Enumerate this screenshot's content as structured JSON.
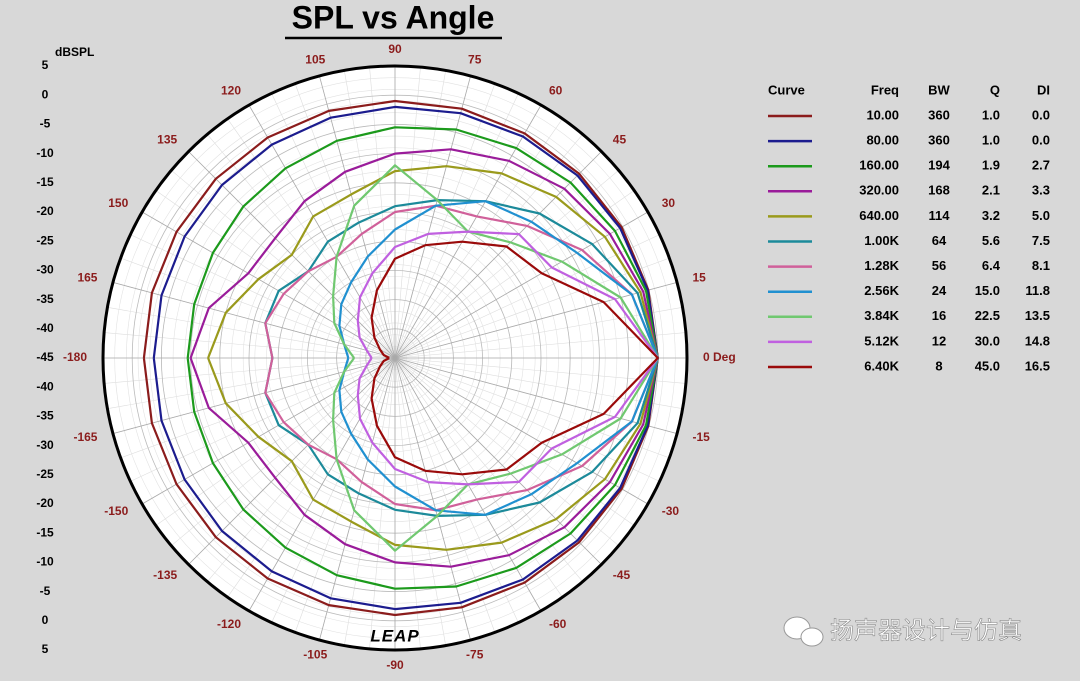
{
  "chart_data": {
    "type": "polar",
    "title": "SPL vs Angle",
    "r_label": "dBSPL",
    "rlim": [
      -45,
      5
    ],
    "rticks": [
      5,
      0,
      -5,
      -10,
      -15,
      -20,
      -25,
      -30,
      -35,
      -40,
      -45
    ],
    "thetaticks": [
      {
        "value": 0,
        "label": "0 Deg"
      },
      15,
      30,
      45,
      60,
      75,
      90,
      105,
      120,
      135,
      150,
      165,
      -180,
      -165,
      -150,
      -135,
      -120,
      -105,
      -90,
      -75,
      -60,
      -45,
      -30,
      -15
    ],
    "theta": [
      -180,
      -165,
      -150,
      -135,
      -120,
      -105,
      -90,
      -75,
      -60,
      -45,
      -30,
      -15,
      0,
      15,
      30,
      45,
      60,
      75,
      90,
      105,
      120,
      135,
      150,
      165,
      180
    ],
    "grid": true,
    "legend_columns": [
      "Curve",
      "Freq",
      "BW",
      "Q",
      "DI"
    ],
    "series": [
      {
        "name": "10.00",
        "color": "#8b1c1c",
        "bw": "360",
        "q": "1.0",
        "di": "0.0",
        "values": [
          -2,
          -1.9,
          -1.8,
          -1.6,
          -1.4,
          -1.2,
          -1,
          -0.8,
          -0.6,
          -0.4,
          -0.2,
          -0.1,
          0,
          -0.1,
          -0.2,
          -0.4,
          -0.6,
          -0.8,
          -1,
          -1.2,
          -1.4,
          -1.6,
          -1.8,
          -1.9,
          -2
        ]
      },
      {
        "name": "80.00",
        "color": "#1c1c8e",
        "bw": "360",
        "q": "1.0",
        "di": "0.0",
        "values": [
          -3.7,
          -3.6,
          -3.4,
          -3.1,
          -2.8,
          -2.4,
          -2,
          -1.6,
          -1.2,
          -0.8,
          -0.5,
          -0.2,
          0,
          -0.2,
          -0.5,
          -0.8,
          -1.2,
          -1.6,
          -2,
          -2.4,
          -2.8,
          -3.1,
          -3.4,
          -3.6,
          -3.7
        ]
      },
      {
        "name": "160.00",
        "color": "#1c9a1c",
        "bw": "194",
        "q": "1.9",
        "di": "2.7",
        "values": [
          -9.5,
          -9.4,
          -9,
          -8.3,
          -7.5,
          -6.5,
          -5.5,
          -4.5,
          -3.5,
          -2.5,
          -1.5,
          -0.5,
          0,
          -0.5,
          -1.5,
          -2.5,
          -3.5,
          -4.5,
          -5.5,
          -6.5,
          -7.5,
          -8.3,
          -9,
          -9.4,
          -9.5
        ]
      },
      {
        "name": "320.00",
        "color": "#9a1c9a",
        "bw": "168",
        "q": "2.1",
        "di": "3.3",
        "values": [
          -10,
          -12,
          -16,
          -16,
          -14,
          -12,
          -10,
          -8,
          -6,
          -4,
          -2.5,
          -1,
          0,
          -1,
          -2.5,
          -4,
          -6,
          -8,
          -10,
          -12,
          -14,
          -16,
          -16,
          -12,
          -10
        ]
      },
      {
        "name": "640.00",
        "color": "#9a9a1c",
        "bw": "114",
        "q": "3.2",
        "di": "5.0",
        "values": [
          -13,
          -15,
          -18,
          -20,
          -17,
          -16,
          -13,
          -11,
          -8.5,
          -6,
          -3.5,
          -1.5,
          0,
          -1.5,
          -3.5,
          -6,
          -8.5,
          -11,
          -13,
          -16,
          -17,
          -20,
          -18,
          -15,
          -13
        ]
      },
      {
        "name": "1.00K",
        "color": "#1c8a9a",
        "bw": "64",
        "q": "5.6",
        "di": "7.5",
        "values": [
          -24,
          -22,
          -22,
          -24,
          -22,
          -21,
          -19,
          -17,
          -14,
          -10,
          -6,
          -2,
          0,
          -2,
          -6,
          -10,
          -14,
          -17,
          -19,
          -21,
          -22,
          -24,
          -22,
          -22,
          -24
        ]
      },
      {
        "name": "1.28K",
        "color": "#d0609a",
        "bw": "56",
        "q": "6.4",
        "di": "8.1",
        "values": [
          -24,
          -22,
          -23,
          -24,
          -25,
          -23,
          -20,
          -18,
          -17,
          -13,
          -8,
          -3,
          0,
          -3,
          -8,
          -13,
          -17,
          -18,
          -20,
          -23,
          -25,
          -24,
          -23,
          -22,
          -24
        ]
      },
      {
        "name": "2.56K",
        "color": "#2090d0",
        "bw": "24",
        "q": "15.0",
        "di": "11.8",
        "values": [
          -37,
          -36,
          -34,
          -32,
          -30,
          -27,
          -23,
          -18,
          -14,
          -12,
          -9,
          -3,
          0,
          -3,
          -9,
          -12,
          -14,
          -18,
          -23,
          -27,
          -30,
          -32,
          -34,
          -36,
          -37
        ]
      },
      {
        "name": "3.84K",
        "color": "#70c870",
        "bw": "16",
        "q": "22.5",
        "di": "13.5",
        "values": [
          -38,
          -36,
          -33,
          -30,
          -25,
          -18,
          -12,
          -17,
          -20,
          -17,
          -12,
          -5,
          0,
          -5,
          -12,
          -17,
          -20,
          -17,
          -12,
          -18,
          -25,
          -30,
          -33,
          -36,
          -38
        ]
      },
      {
        "name": "5.12K",
        "color": "#c060e0",
        "bw": "12",
        "q": "30.0",
        "di": "14.8",
        "values": [
          -41,
          -40,
          -38,
          -36,
          -33,
          -30,
          -26,
          -23,
          -20,
          -15,
          -14,
          -6,
          0,
          -6,
          -14,
          -15,
          -20,
          -23,
          -26,
          -30,
          -33,
          -36,
          -38,
          -40,
          -41
        ]
      },
      {
        "name": "6.40K",
        "color": "#9a0a0a",
        "bw": "8",
        "q": "45.0",
        "di": "16.5",
        "values": [
          -44,
          -43,
          -42,
          -40,
          -37,
          -33,
          -28,
          -25,
          -22,
          -18,
          -16,
          -8,
          0,
          -8,
          -16,
          -18,
          -22,
          -25,
          -28,
          -33,
          -37,
          -40,
          -42,
          -43,
          -44
        ]
      }
    ]
  },
  "logo": "LEAP",
  "watermark": "扬声器设计与仿真"
}
